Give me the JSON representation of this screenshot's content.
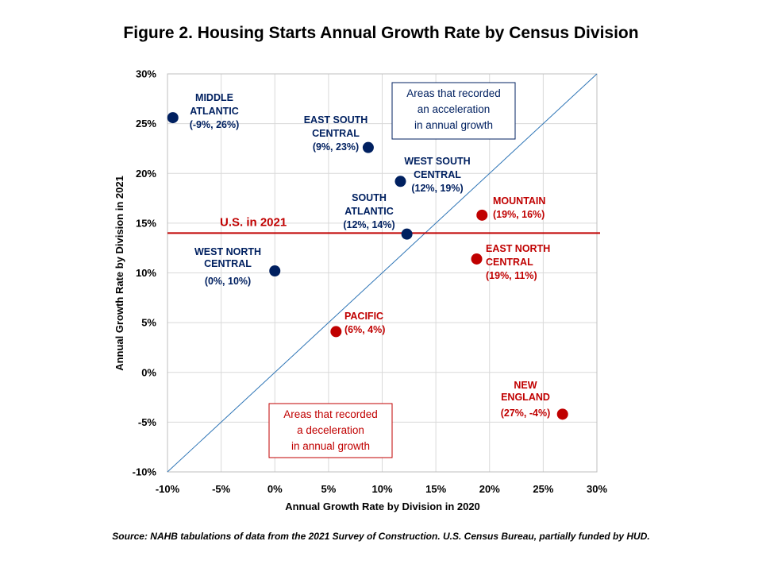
{
  "chart_data": {
    "type": "scatter",
    "title": "Figure 2. Housing Starts Annual Growth Rate by Census Division",
    "xlabel": "Annual Growth Rate by Division in 2020",
    "ylabel": "Annual Growth Rate by Division in 2021",
    "xlim": [
      -10,
      30
    ],
    "ylim": [
      -10,
      30
    ],
    "x_ticks": [
      "-10%",
      "-5%",
      "0%",
      "5%",
      "10%",
      "15%",
      "20%",
      "25%",
      "30%"
    ],
    "y_ticks": [
      "-10%",
      "-5%",
      "0%",
      "5%",
      "10%",
      "15%",
      "20%",
      "25%",
      "30%"
    ],
    "grid": true,
    "diagonal_line": true,
    "reference_line": {
      "label": "U.S. in 2021",
      "y": 14,
      "color": "#c00000"
    },
    "colors": {
      "acceleration": "#002060",
      "deceleration": "#c00000",
      "diagonal": "#2e75b6"
    },
    "points": [
      {
        "lines": [
          "MIDDLE",
          "ATLANTIC",
          "(-9%, 26%)"
        ],
        "x": -9.5,
        "y": 25.6,
        "group": "acceleration"
      },
      {
        "lines": [
          "EAST SOUTH",
          "CENTRAL",
          "(9%, 23%)"
        ],
        "x": 8.7,
        "y": 22.6,
        "group": "acceleration"
      },
      {
        "lines": [
          "WEST SOUTH",
          "CENTRAL",
          "(12%, 19%)"
        ],
        "x": 11.7,
        "y": 19.2,
        "group": "acceleration"
      },
      {
        "lines": [
          "SOUTH",
          "ATLANTIC",
          "(12%, 14%)"
        ],
        "x": 12.3,
        "y": 13.9,
        "group": "acceleration"
      },
      {
        "lines": [
          "WEST NORTH",
          "CENTRAL",
          "(0%, 10%)"
        ],
        "x": 0,
        "y": 10.2,
        "group": "acceleration"
      },
      {
        "lines": [
          "MOUNTAIN",
          "(19%, 16%)"
        ],
        "x": 19.3,
        "y": 15.8,
        "group": "deceleration"
      },
      {
        "lines": [
          "EAST NORTH",
          "CENTRAL",
          "(19%, 11%)"
        ],
        "x": 18.8,
        "y": 11.4,
        "group": "deceleration"
      },
      {
        "lines": [
          "PACIFIC",
          "(6%, 4%)"
        ],
        "x": 5.7,
        "y": 4.1,
        "group": "deceleration"
      },
      {
        "lines": [
          "NEW",
          "ENGLAND",
          "(27%, -4%)"
        ],
        "x": 26.8,
        "y": -4.2,
        "group": "deceleration"
      }
    ],
    "annotations": [
      {
        "lines": [
          "Areas that recorded",
          "an acceleration",
          "in annual growth"
        ],
        "group": "acceleration"
      },
      {
        "lines": [
          "Areas that recorded",
          "a deceleration",
          "in annual growth"
        ],
        "group": "deceleration"
      }
    ],
    "source": "Source: NAHB tabulations of data from the 2021 Survey of Construction. U.S. Census Bureau, partially funded by HUD."
  }
}
